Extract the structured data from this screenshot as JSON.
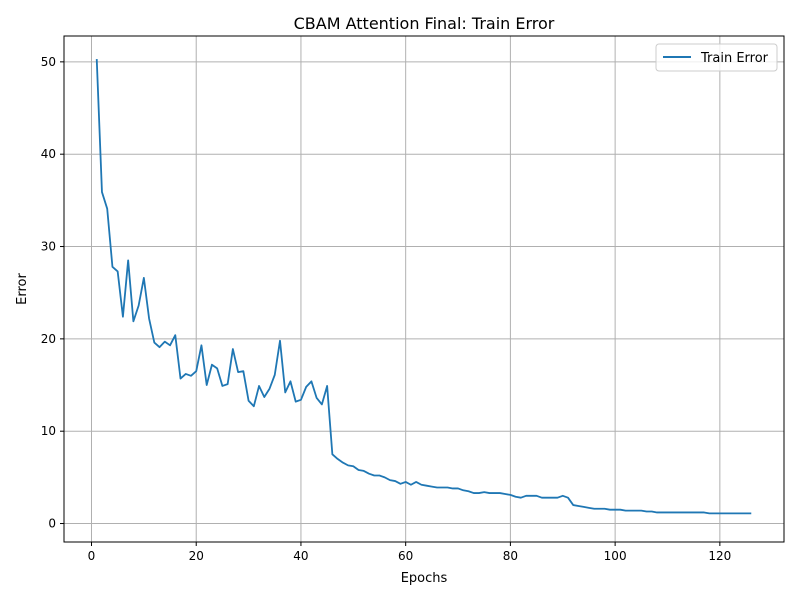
{
  "chart_data": {
    "type": "line",
    "title": "CBAM Attention Final: Train Error",
    "xlabel": "Epochs",
    "ylabel": "Error",
    "xlim": [
      -5.25,
      132.25
    ],
    "ylim": [
      -2.0,
      52.8
    ],
    "xticks": [
      0,
      20,
      40,
      60,
      80,
      100,
      120
    ],
    "yticks": [
      0,
      10,
      20,
      30,
      40,
      50
    ],
    "grid": true,
    "legend_position": "top-right",
    "series": [
      {
        "name": "Train Error",
        "color": "#1f77b4",
        "x": [
          1,
          2,
          3,
          4,
          5,
          6,
          7,
          8,
          9,
          10,
          11,
          12,
          13,
          14,
          15,
          16,
          17,
          18,
          19,
          20,
          21,
          22,
          23,
          24,
          25,
          26,
          27,
          28,
          29,
          30,
          31,
          32,
          33,
          34,
          35,
          36,
          37,
          38,
          39,
          40,
          41,
          42,
          43,
          44,
          45,
          46,
          47,
          48,
          49,
          50,
          51,
          52,
          53,
          54,
          55,
          56,
          57,
          58,
          59,
          60,
          61,
          62,
          63,
          64,
          65,
          66,
          67,
          68,
          69,
          70,
          71,
          72,
          73,
          74,
          75,
          76,
          77,
          78,
          79,
          80,
          81,
          82,
          83,
          84,
          85,
          86,
          87,
          88,
          89,
          90,
          91,
          92,
          93,
          94,
          95,
          96,
          97,
          98,
          99,
          100,
          101,
          102,
          103,
          104,
          105,
          106,
          107,
          108,
          109,
          110,
          111,
          112,
          113,
          114,
          115,
          116,
          117,
          118,
          119,
          120,
          121,
          122,
          123,
          124,
          125,
          126
        ],
        "values": [
          50.3,
          35.9,
          34.1,
          27.8,
          27.3,
          22.4,
          28.5,
          21.9,
          23.6,
          26.6,
          22.2,
          19.6,
          19.1,
          19.7,
          19.3,
          20.4,
          15.7,
          16.2,
          16.0,
          16.5,
          19.3,
          15.0,
          17.2,
          16.8,
          14.9,
          15.1,
          18.9,
          16.4,
          16.5,
          13.3,
          12.7,
          14.9,
          13.7,
          14.6,
          16.1,
          19.8,
          14.2,
          15.4,
          13.2,
          13.4,
          14.8,
          15.4,
          13.6,
          12.9,
          14.9,
          7.5,
          7.0,
          6.6,
          6.3,
          6.2,
          5.8,
          5.7,
          5.4,
          5.2,
          5.2,
          5.0,
          4.7,
          4.6,
          4.3,
          4.5,
          4.2,
          4.5,
          4.2,
          4.1,
          4.0,
          3.9,
          3.9,
          3.9,
          3.8,
          3.8,
          3.6,
          3.5,
          3.3,
          3.3,
          3.4,
          3.3,
          3.3,
          3.3,
          3.2,
          3.1,
          2.9,
          2.8,
          3.0,
          3.0,
          3.0,
          2.8,
          2.8,
          2.8,
          2.8,
          3.0,
          2.8,
          2.0,
          1.9,
          1.8,
          1.7,
          1.6,
          1.6,
          1.6,
          1.5,
          1.5,
          1.5,
          1.4,
          1.4,
          1.4,
          1.4,
          1.3,
          1.3,
          1.2,
          1.2,
          1.2,
          1.2,
          1.2,
          1.2,
          1.2,
          1.2,
          1.2,
          1.2,
          1.1,
          1.1,
          1.1,
          1.1,
          1.1,
          1.1,
          1.1,
          1.1,
          1.1
        ]
      }
    ]
  }
}
